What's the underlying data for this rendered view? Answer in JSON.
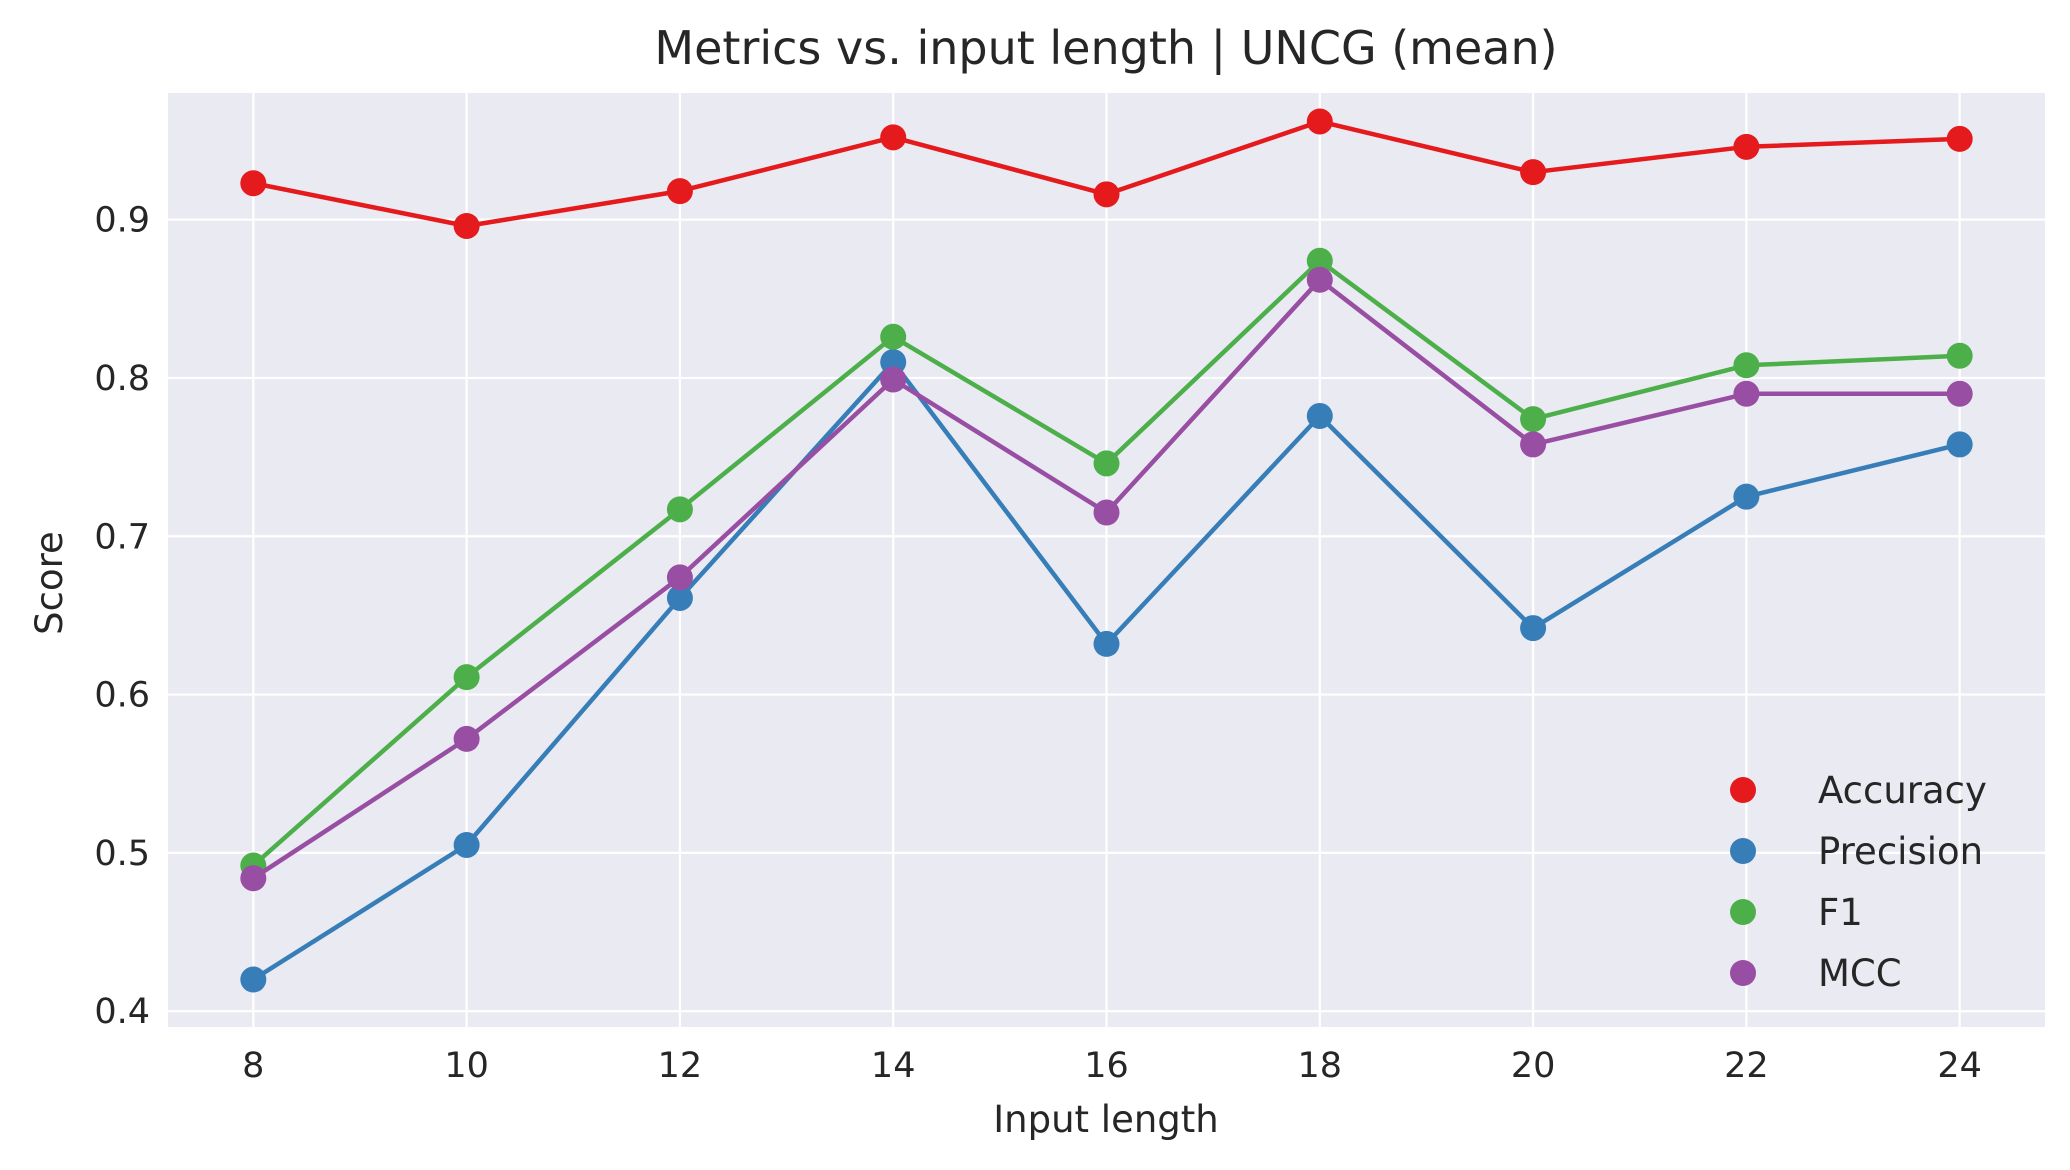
{
  "chart_data": {
    "type": "line",
    "title": "Metrics vs. input length | UNCG (mean)",
    "xlabel": "Input length",
    "ylabel": "Score",
    "x": [
      8,
      10,
      12,
      14,
      16,
      18,
      20,
      22,
      24
    ],
    "xticks": [
      "8",
      "10",
      "12",
      "14",
      "16",
      "18",
      "20",
      "22",
      "24"
    ],
    "yticks": [
      "0.4",
      "0.5",
      "0.6",
      "0.7",
      "0.8",
      "0.9"
    ],
    "ytick_values": [
      0.4,
      0.5,
      0.6,
      0.7,
      0.8,
      0.9
    ],
    "xlim": [
      7.2,
      24.8
    ],
    "ylim": [
      0.39,
      0.98
    ],
    "grid": true,
    "legend_position": "lower-right",
    "series": [
      {
        "name": "Accuracy",
        "color": "#e41a1c",
        "values": [
          0.923,
          0.896,
          0.918,
          0.952,
          0.916,
          0.962,
          0.93,
          0.946,
          0.951
        ]
      },
      {
        "name": "Precision",
        "color": "#377eb8",
        "values": [
          0.42,
          0.505,
          0.661,
          0.81,
          0.632,
          0.776,
          0.642,
          0.725,
          0.758
        ]
      },
      {
        "name": "F1",
        "color": "#4daf4a",
        "values": [
          0.492,
          0.611,
          0.717,
          0.826,
          0.746,
          0.874,
          0.774,
          0.808,
          0.814
        ]
      },
      {
        "name": "MCC",
        "color": "#984ea3",
        "values": [
          0.484,
          0.572,
          0.674,
          0.799,
          0.715,
          0.862,
          0.758,
          0.79,
          0.79
        ]
      }
    ]
  }
}
